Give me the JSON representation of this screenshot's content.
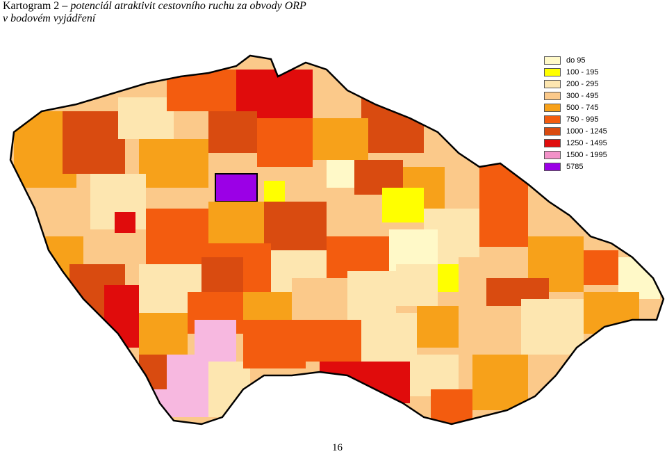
{
  "title": {
    "prefix": "Kartogram 2 – ",
    "line1_italic": "potenciál atraktivit cestovního ruchu za obvody ORP",
    "line2_italic": "v bodovém vyjádření"
  },
  "legend": [
    {
      "label": "do 95",
      "color": "#fff9c8"
    },
    {
      "label": "100 - 195",
      "color": "#ffff00"
    },
    {
      "label": "200 - 295",
      "color": "#fde6b0"
    },
    {
      "label": "300 - 495",
      "color": "#fbc98a"
    },
    {
      "label": "500 - 745",
      "color": "#f7a11a"
    },
    {
      "label": "750 - 995",
      "color": "#f35c0f"
    },
    {
      "label": "1000 - 1245",
      "color": "#d94b10"
    },
    {
      "label": "1250 - 1495",
      "color": "#e00c0c"
    },
    {
      "label": "1500 - 1995",
      "color": "#f291c8"
    },
    {
      "label": "5785",
      "color": "#9b00e6"
    }
  ],
  "page_number": "16"
}
